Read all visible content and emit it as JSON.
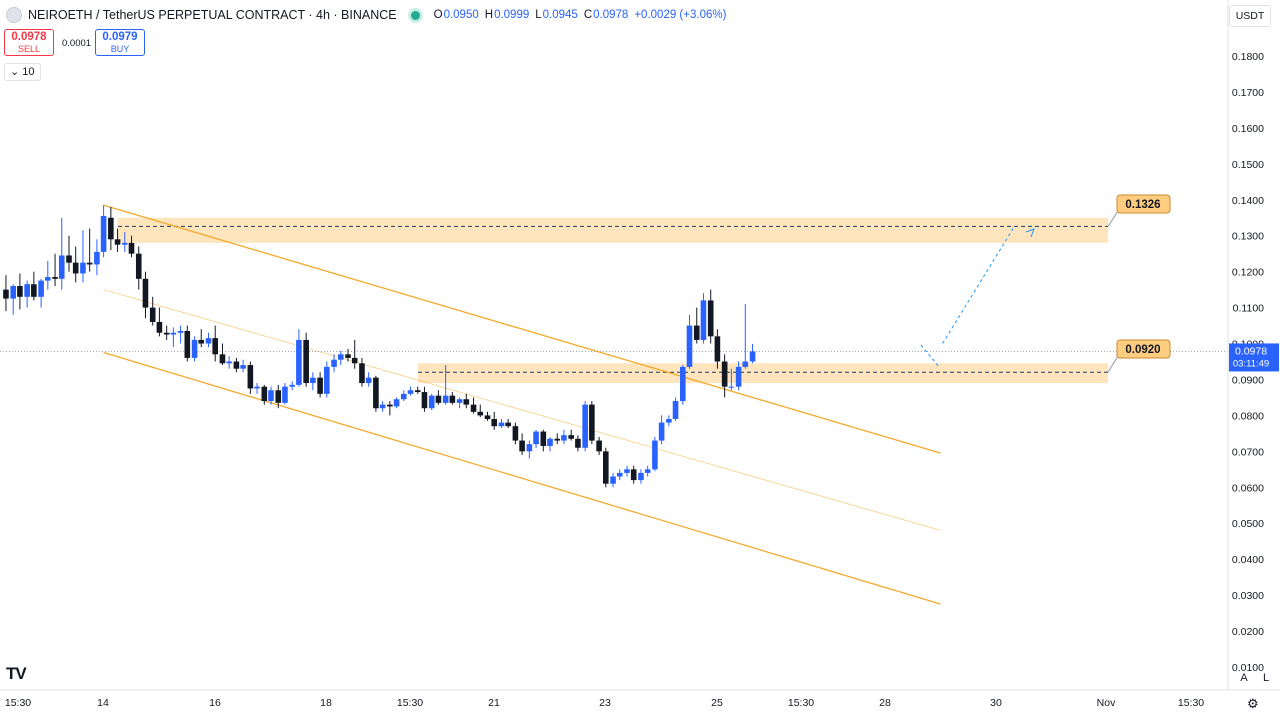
{
  "header": {
    "title": "NEIROETH / TetherUS PERPETUAL CONTRACT · 4h · BINANCE",
    "ohlc": {
      "o_label": "O",
      "o": "0.0950",
      "h_label": "H",
      "h": "0.0999",
      "l_label": "L",
      "l": "0.0945",
      "c_label": "C",
      "c": "0.0978",
      "change": "+0.0029 (+3.06%)"
    }
  },
  "trade": {
    "sell_price": "0.0978",
    "sell_label": "SELL",
    "spread": "0.0001",
    "buy_price": "0.0979",
    "buy_label": "BUY"
  },
  "indicator": {
    "volume_label": "10"
  },
  "currency": "USDT",
  "bottom": {
    "auto_label": "A",
    "log_label": "L"
  },
  "icons": {
    "settings": "gear-icon",
    "logo": "tradingview-logo",
    "collapse": "chevron-down-icon"
  },
  "colors": {
    "up": "#2962ff",
    "down": "#131722",
    "zone": "#ffe0b2",
    "channel": "#f5a623",
    "projection": "#2196f3",
    "axis_text": "#131722"
  },
  "chart_data": {
    "type": "candlestick",
    "timeframe": "4h",
    "y_ticks": [
      "0.1800",
      "0.1700",
      "0.1600",
      "0.1500",
      "0.1400",
      "0.1300",
      "0.1200",
      "0.1100",
      "0.1000",
      "0.0900",
      "0.0800",
      "0.0700",
      "0.0600",
      "0.0500",
      "0.0400",
      "0.0300",
      "0.0200",
      "0.0100"
    ],
    "x_ticks": [
      "15:30",
      "14",
      "16",
      "18",
      "15:30",
      "21",
      "23",
      "25",
      "15:30",
      "28",
      "30",
      "Nov",
      "15:30"
    ],
    "ylim": [
      0.01,
      0.19
    ],
    "last_price": {
      "value": "0.0978",
      "countdown": "03:11:49"
    },
    "levels": [
      {
        "label": "0.1326",
        "value": 0.1326,
        "zone": [
          0.128,
          0.135
        ]
      },
      {
        "label": "0.0920",
        "value": 0.092,
        "zone": [
          0.089,
          0.0945
        ]
      }
    ],
    "channel": {
      "upper": [
        [
          14.0,
          0.1385
        ],
        [
          29.0,
          0.0695
        ]
      ],
      "mid": [
        [
          14.0,
          0.115
        ],
        [
          29.0,
          0.048
        ]
      ],
      "lower": [
        [
          14.0,
          0.0975
        ],
        [
          29.0,
          0.0275
        ]
      ]
    },
    "projection": [
      [
        29.0,
        0.0978
      ],
      [
        30.3,
        0.132
      ]
    ],
    "candles": [
      [
        12.25,
        0.115,
        0.119,
        0.109,
        0.1125
      ],
      [
        12.38,
        0.1125,
        0.1165,
        0.108,
        0.116
      ],
      [
        12.5,
        0.116,
        0.1195,
        0.1095,
        0.113
      ],
      [
        12.63,
        0.113,
        0.1175,
        0.11,
        0.1165
      ],
      [
        12.75,
        0.1165,
        0.12,
        0.112,
        0.113
      ],
      [
        12.88,
        0.113,
        0.118,
        0.11,
        0.1175
      ],
      [
        13.0,
        0.1175,
        0.123,
        0.115,
        0.1185
      ],
      [
        13.13,
        0.1185,
        0.125,
        0.116,
        0.118
      ],
      [
        13.25,
        0.118,
        0.135,
        0.115,
        0.1245
      ],
      [
        13.38,
        0.1245,
        0.13,
        0.12,
        0.1225
      ],
      [
        13.5,
        0.1225,
        0.127,
        0.117,
        0.1195
      ],
      [
        13.63,
        0.1195,
        0.1315,
        0.117,
        0.1225
      ],
      [
        13.75,
        0.1225,
        0.132,
        0.12,
        0.122
      ],
      [
        13.88,
        0.122,
        0.129,
        0.119,
        0.1255
      ],
      [
        14.0,
        0.1255,
        0.1385,
        0.124,
        0.1355
      ],
      [
        14.13,
        0.135,
        0.138,
        0.126,
        0.129
      ],
      [
        14.25,
        0.129,
        0.132,
        0.1255,
        0.1275
      ],
      [
        14.38,
        0.1275,
        0.131,
        0.1255,
        0.128
      ],
      [
        14.5,
        0.128,
        0.13,
        0.124,
        0.125
      ],
      [
        14.63,
        0.125,
        0.127,
        0.115,
        0.118
      ],
      [
        14.75,
        0.118,
        0.12,
        0.107,
        0.11
      ],
      [
        14.88,
        0.11,
        0.113,
        0.105,
        0.106
      ],
      [
        15.0,
        0.106,
        0.11,
        0.102,
        0.103
      ],
      [
        15.13,
        0.103,
        0.105,
        0.101,
        0.1025
      ],
      [
        15.25,
        0.1025,
        0.1045,
        0.099,
        0.103
      ],
      [
        15.38,
        0.103,
        0.105,
        0.1,
        0.1035
      ],
      [
        15.5,
        0.1035,
        0.105,
        0.095,
        0.096
      ],
      [
        15.63,
        0.096,
        0.102,
        0.095,
        0.101
      ],
      [
        15.75,
        0.101,
        0.104,
        0.099,
        0.1
      ],
      [
        15.88,
        0.1,
        0.103,
        0.099,
        0.1015
      ],
      [
        16.0,
        0.1015,
        0.105,
        0.095,
        0.097
      ],
      [
        16.13,
        0.097,
        0.1,
        0.094,
        0.0945
      ],
      [
        16.25,
        0.0945,
        0.0965,
        0.093,
        0.095
      ],
      [
        16.38,
        0.095,
        0.096,
        0.092,
        0.093
      ],
      [
        16.5,
        0.093,
        0.0955,
        0.092,
        0.094
      ],
      [
        16.63,
        0.094,
        0.095,
        0.086,
        0.0875
      ],
      [
        16.75,
        0.0875,
        0.089,
        0.086,
        0.088
      ],
      [
        16.88,
        0.088,
        0.0885,
        0.083,
        0.084
      ],
      [
        17.0,
        0.084,
        0.088,
        0.083,
        0.087
      ],
      [
        17.13,
        0.087,
        0.0885,
        0.082,
        0.0835
      ],
      [
        17.25,
        0.0835,
        0.089,
        0.083,
        0.088
      ],
      [
        17.38,
        0.088,
        0.0895,
        0.087,
        0.0885
      ],
      [
        17.5,
        0.0885,
        0.104,
        0.088,
        0.101
      ],
      [
        17.63,
        0.101,
        0.103,
        0.088,
        0.089
      ],
      [
        17.75,
        0.089,
        0.092,
        0.087,
        0.0905
      ],
      [
        17.88,
        0.0905,
        0.092,
        0.085,
        0.086
      ],
      [
        18.0,
        0.086,
        0.095,
        0.085,
        0.0935
      ],
      [
        18.13,
        0.0935,
        0.097,
        0.092,
        0.0955
      ],
      [
        18.25,
        0.0955,
        0.098,
        0.094,
        0.097
      ],
      [
        18.38,
        0.097,
        0.0985,
        0.095,
        0.096
      ],
      [
        18.5,
        0.096,
        0.101,
        0.093,
        0.0945
      ],
      [
        18.63,
        0.0945,
        0.096,
        0.088,
        0.089
      ],
      [
        18.75,
        0.089,
        0.092,
        0.088,
        0.0905
      ],
      [
        18.88,
        0.0905,
        0.091,
        0.081,
        0.082
      ],
      [
        19.0,
        0.082,
        0.084,
        0.081,
        0.083
      ],
      [
        19.13,
        0.083,
        0.084,
        0.08,
        0.0825
      ],
      [
        19.25,
        0.0825,
        0.085,
        0.082,
        0.0845
      ],
      [
        19.38,
        0.0845,
        0.087,
        0.084,
        0.086
      ],
      [
        19.5,
        0.086,
        0.088,
        0.0855,
        0.087
      ],
      [
        19.63,
        0.087,
        0.088,
        0.086,
        0.0865
      ],
      [
        19.75,
        0.0865,
        0.088,
        0.081,
        0.082
      ],
      [
        19.88,
        0.082,
        0.086,
        0.0815,
        0.0855
      ],
      [
        20.0,
        0.0855,
        0.087,
        0.083,
        0.0835
      ],
      [
        20.13,
        0.0835,
        0.094,
        0.083,
        0.0855
      ],
      [
        20.25,
        0.0855,
        0.0865,
        0.083,
        0.0835
      ],
      [
        20.38,
        0.0835,
        0.085,
        0.082,
        0.0845
      ],
      [
        20.5,
        0.0845,
        0.086,
        0.082,
        0.083
      ],
      [
        20.63,
        0.083,
        0.085,
        0.0805,
        0.081
      ],
      [
        20.75,
        0.081,
        0.083,
        0.0795,
        0.08
      ],
      [
        20.88,
        0.08,
        0.081,
        0.0785,
        0.079
      ],
      [
        21.0,
        0.079,
        0.081,
        0.076,
        0.077
      ],
      [
        21.13,
        0.077,
        0.079,
        0.0765,
        0.078
      ],
      [
        21.25,
        0.078,
        0.079,
        0.0765,
        0.077
      ],
      [
        21.38,
        0.077,
        0.078,
        0.072,
        0.073
      ],
      [
        21.5,
        0.073,
        0.075,
        0.069,
        0.07
      ],
      [
        21.63,
        0.07,
        0.073,
        0.068,
        0.072
      ],
      [
        21.75,
        0.072,
        0.076,
        0.071,
        0.0755
      ],
      [
        21.88,
        0.0755,
        0.076,
        0.07,
        0.0715
      ],
      [
        22.0,
        0.0715,
        0.074,
        0.07,
        0.0735
      ],
      [
        22.13,
        0.0735,
        0.075,
        0.072,
        0.073
      ],
      [
        22.25,
        0.073,
        0.076,
        0.072,
        0.0745
      ],
      [
        22.38,
        0.0745,
        0.076,
        0.073,
        0.0735
      ],
      [
        22.5,
        0.0735,
        0.0745,
        0.07,
        0.071
      ],
      [
        22.63,
        0.071,
        0.084,
        0.07,
        0.083
      ],
      [
        22.75,
        0.083,
        0.084,
        0.072,
        0.073
      ],
      [
        22.88,
        0.073,
        0.074,
        0.069,
        0.07
      ],
      [
        23.0,
        0.07,
        0.071,
        0.06,
        0.061
      ],
      [
        23.13,
        0.061,
        0.064,
        0.06,
        0.063
      ],
      [
        23.25,
        0.063,
        0.065,
        0.062,
        0.064
      ],
      [
        23.38,
        0.064,
        0.066,
        0.063,
        0.065
      ],
      [
        23.5,
        0.065,
        0.066,
        0.061,
        0.062
      ],
      [
        23.63,
        0.062,
        0.065,
        0.061,
        0.064
      ],
      [
        23.75,
        0.064,
        0.066,
        0.063,
        0.065
      ],
      [
        23.88,
        0.065,
        0.074,
        0.0645,
        0.073
      ],
      [
        24.0,
        0.073,
        0.08,
        0.072,
        0.078
      ],
      [
        24.13,
        0.078,
        0.08,
        0.077,
        0.079
      ],
      [
        24.25,
        0.079,
        0.085,
        0.0785,
        0.084
      ],
      [
        24.38,
        0.084,
        0.094,
        0.083,
        0.0935
      ],
      [
        24.5,
        0.0935,
        0.108,
        0.093,
        0.105
      ],
      [
        24.63,
        0.105,
        0.11,
        0.1,
        0.101
      ],
      [
        24.75,
        0.101,
        0.114,
        0.1,
        0.112
      ],
      [
        24.88,
        0.112,
        0.115,
        0.1,
        0.102
      ],
      [
        25.0,
        0.102,
        0.104,
        0.093,
        0.095
      ],
      [
        25.13,
        0.095,
        0.097,
        0.085,
        0.088
      ],
      [
        25.25,
        0.088,
        0.093,
        0.087,
        0.088
      ],
      [
        25.38,
        0.088,
        0.095,
        0.087,
        0.0935
      ],
      [
        25.5,
        0.0935,
        0.111,
        0.093,
        0.095
      ],
      [
        25.63,
        0.095,
        0.0999,
        0.0945,
        0.0978
      ]
    ]
  }
}
